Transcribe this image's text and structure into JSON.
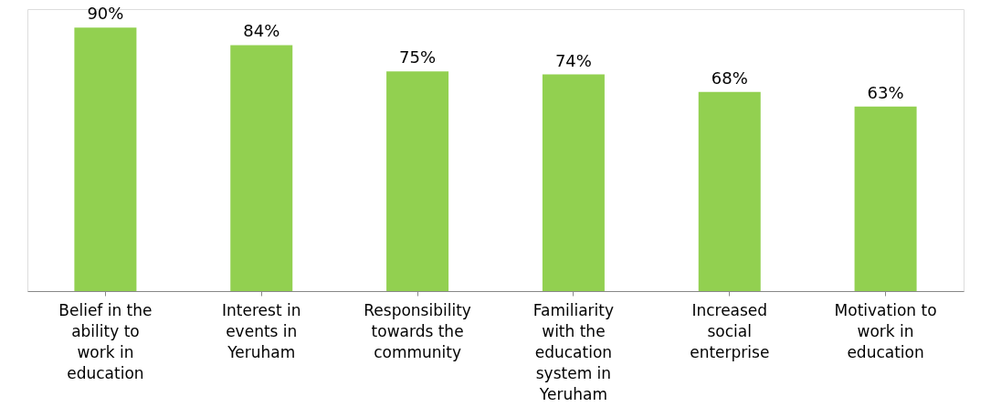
{
  "chart_data": {
    "type": "bar",
    "categories": [
      "Belief in the ability to work in education",
      "Interest in events in Yeruham",
      "Responsibility towards the community",
      "Familiarity with the education system in Yeruham",
      "Increased social enterprise",
      "Motivation to work in education"
    ],
    "values": [
      90,
      84,
      75,
      74,
      68,
      63
    ],
    "value_labels": [
      "90%",
      "84%",
      "75%",
      "74%",
      "68%",
      "63%"
    ],
    "color": "#92d050"
  }
}
